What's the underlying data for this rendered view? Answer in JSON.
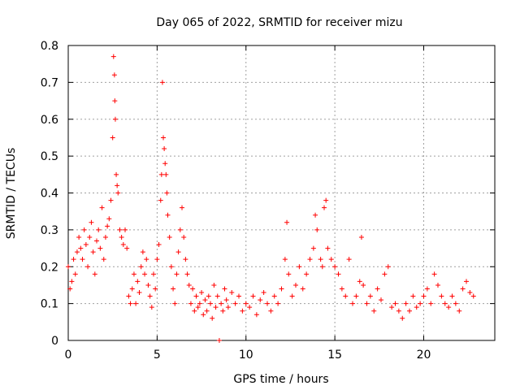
{
  "chart_data": {
    "type": "scatter",
    "title": "Day 065 of 2022, SRMTID for receiver mizu",
    "xlabel": "GPS time / hours",
    "ylabel": "SRMTID / TECUs",
    "xlim": [
      0,
      24
    ],
    "ylim": [
      0,
      0.8
    ],
    "xticks": [
      0,
      5,
      10,
      15,
      20
    ],
    "yticks": [
      0,
      0.1,
      0.2,
      0.3,
      0.4,
      0.5,
      0.6,
      0.7,
      0.8
    ],
    "xtick_labels": [
      "0",
      "5",
      "10",
      "15",
      "20"
    ],
    "ytick_labels": [
      "0",
      "0.1",
      "0.2",
      "0.3",
      "0.4",
      "0.5",
      "0.6",
      "0.7",
      "0.8"
    ],
    "grid": true,
    "marker": "+",
    "color": "#ff0000",
    "series": [
      {
        "name": "SRMTID",
        "x": [
          0.0,
          0.1,
          0.2,
          0.3,
          0.4,
          0.5,
          0.6,
          0.7,
          0.8,
          0.9,
          1.0,
          1.1,
          1.2,
          1.3,
          1.4,
          1.5,
          1.6,
          1.7,
          1.8,
          1.9,
          2.0,
          2.1,
          2.2,
          2.3,
          2.4,
          2.5,
          2.55,
          2.6,
          2.62,
          2.65,
          2.7,
          2.75,
          2.8,
          2.9,
          3.0,
          3.1,
          3.2,
          3.3,
          3.4,
          3.5,
          3.6,
          3.7,
          3.8,
          3.9,
          4.0,
          4.1,
          4.2,
          4.3,
          4.4,
          4.5,
          4.6,
          4.7,
          4.8,
          4.9,
          5.0,
          5.1,
          5.2,
          5.25,
          5.3,
          5.35,
          5.4,
          5.45,
          5.5,
          5.55,
          5.6,
          5.7,
          5.8,
          5.9,
          6.0,
          6.1,
          6.2,
          6.3,
          6.4,
          6.5,
          6.6,
          6.7,
          6.8,
          6.9,
          7.0,
          7.1,
          7.2,
          7.3,
          7.4,
          7.5,
          7.6,
          7.7,
          7.8,
          7.9,
          8.0,
          8.1,
          8.2,
          8.3,
          8.4,
          8.5,
          8.6,
          8.7,
          8.8,
          8.9,
          9.0,
          9.2,
          9.4,
          9.6,
          9.8,
          10.0,
          10.2,
          10.4,
          10.6,
          10.8,
          11.0,
          11.2,
          11.4,
          11.6,
          11.8,
          12.0,
          12.2,
          12.3,
          12.4,
          12.6,
          12.8,
          13.0,
          13.2,
          13.4,
          13.6,
          13.8,
          13.9,
          14.0,
          14.2,
          14.3,
          14.4,
          14.5,
          14.6,
          14.8,
          15.0,
          15.2,
          15.4,
          15.6,
          15.8,
          16.0,
          16.2,
          16.4,
          16.5,
          16.6,
          16.8,
          17.0,
          17.2,
          17.4,
          17.6,
          17.8,
          18.0,
          18.2,
          18.4,
          18.6,
          18.8,
          19.0,
          19.2,
          19.4,
          19.6,
          19.8,
          20.0,
          20.2,
          20.4,
          20.6,
          20.8,
          21.0,
          21.2,
          21.4,
          21.6,
          21.8,
          22.0,
          22.2,
          22.4,
          22.6,
          22.8
        ],
        "y": [
          0.2,
          0.14,
          0.16,
          0.22,
          0.18,
          0.24,
          0.28,
          0.25,
          0.22,
          0.3,
          0.26,
          0.2,
          0.28,
          0.32,
          0.24,
          0.18,
          0.27,
          0.3,
          0.25,
          0.36,
          0.22,
          0.28,
          0.31,
          0.33,
          0.38,
          0.55,
          0.77,
          0.72,
          0.65,
          0.6,
          0.45,
          0.42,
          0.4,
          0.3,
          0.28,
          0.26,
          0.3,
          0.25,
          0.12,
          0.1,
          0.14,
          0.18,
          0.1,
          0.16,
          0.13,
          0.2,
          0.24,
          0.18,
          0.22,
          0.15,
          0.12,
          0.09,
          0.18,
          0.14,
          0.22,
          0.26,
          0.38,
          0.45,
          0.7,
          0.55,
          0.52,
          0.48,
          0.45,
          0.4,
          0.34,
          0.28,
          0.2,
          0.14,
          0.1,
          0.18,
          0.24,
          0.3,
          0.36,
          0.28,
          0.22,
          0.18,
          0.15,
          0.1,
          0.14,
          0.08,
          0.12,
          0.09,
          0.1,
          0.13,
          0.07,
          0.11,
          0.08,
          0.12,
          0.1,
          0.06,
          0.15,
          0.09,
          0.12,
          0.0,
          0.1,
          0.08,
          0.14,
          0.11,
          0.09,
          0.13,
          0.1,
          0.12,
          0.08,
          0.1,
          0.09,
          0.12,
          0.07,
          0.11,
          0.13,
          0.1,
          0.08,
          0.12,
          0.1,
          0.14,
          0.22,
          0.32,
          0.18,
          0.12,
          0.15,
          0.2,
          0.14,
          0.18,
          0.22,
          0.25,
          0.34,
          0.3,
          0.22,
          0.2,
          0.36,
          0.38,
          0.25,
          0.22,
          0.2,
          0.18,
          0.14,
          0.12,
          0.22,
          0.1,
          0.12,
          0.16,
          0.28,
          0.15,
          0.1,
          0.12,
          0.08,
          0.14,
          0.11,
          0.18,
          0.2,
          0.09,
          0.1,
          0.08,
          0.06,
          0.1,
          0.08,
          0.12,
          0.09,
          0.1,
          0.12,
          0.14,
          0.1,
          0.18,
          0.15,
          0.12,
          0.1,
          0.09,
          0.12,
          0.1,
          0.08,
          0.14,
          0.16,
          0.13,
          0.12
        ]
      }
    ]
  }
}
